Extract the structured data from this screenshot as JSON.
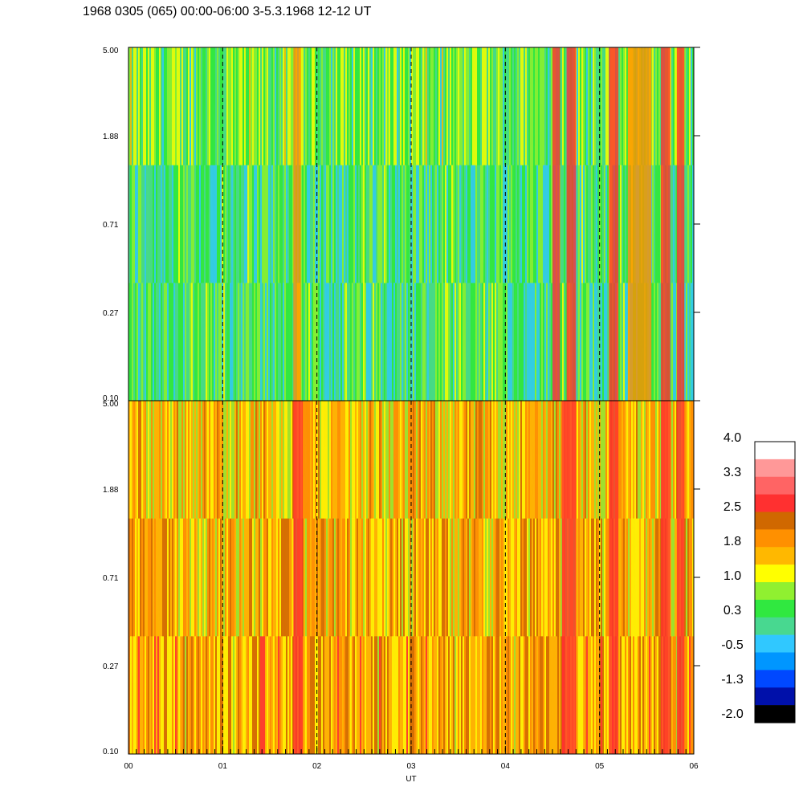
{
  "title": "1968 0305 (065) 00:00-06:00 3-5.3.1968  12-12 UT",
  "chart_data": {
    "type": "heatmap",
    "xlabel": "UT",
    "x_ticks": [
      "00",
      "01",
      "02",
      "03",
      "04",
      "05",
      "06"
    ],
    "x_range": [
      0,
      6
    ],
    "panels": [
      {
        "name": "",
        "y_ticks": [
          "5.00",
          "1.88",
          "0.71",
          "0.27",
          "0.10"
        ],
        "y_range": [
          0.1,
          5.0
        ],
        "y_scale": "log",
        "dominant_level": 0.3,
        "features": [
          {
            "x_start": 1.75,
            "x_end": 1.83,
            "level": 1.8
          },
          {
            "x_start": 4.5,
            "x_end": 4.58,
            "level": 2.5
          },
          {
            "x_start": 4.65,
            "x_end": 4.75,
            "level": 2.5
          },
          {
            "x_start": 5.1,
            "x_end": 5.2,
            "level": 2.5
          },
          {
            "x_start": 5.3,
            "x_end": 5.55,
            "level": 1.8
          },
          {
            "x_start": 5.65,
            "x_end": 5.75,
            "level": 2.5
          },
          {
            "x_start": 5.82,
            "x_end": 5.9,
            "level": 2.5
          }
        ]
      },
      {
        "name": "",
        "y_ticks": [
          "5.00",
          "1.88",
          "0.71",
          "0.27",
          "0.10"
        ],
        "y_range": [
          0.1,
          5.0
        ],
        "y_scale": "log",
        "dominant_level": 1.8,
        "features": [
          {
            "x_start": 1.75,
            "x_end": 1.85,
            "level": 2.5
          },
          {
            "x_start": 4.6,
            "x_end": 4.75,
            "level": 2.5
          },
          {
            "x_start": 5.1,
            "x_end": 5.2,
            "level": 2.5
          },
          {
            "x_start": 5.65,
            "x_end": 5.75,
            "level": 2.5
          },
          {
            "x_start": 5.82,
            "x_end": 5.9,
            "level": 2.5
          }
        ]
      }
    ],
    "grid": "dashed vertical at each hour",
    "colorbar": {
      "tick_labels": [
        "4.0",
        "3.3",
        "2.5",
        "1.8",
        "1.0",
        "0.3",
        "-0.5",
        "-1.3",
        "-2.0"
      ],
      "range": [
        -2.0,
        4.0
      ],
      "colors": [
        "#000000",
        "#0010aa",
        "#0048ff",
        "#0096ff",
        "#30c8ff",
        "#48d890",
        "#30e840",
        "#90f030",
        "#ffff00",
        "#ffb800",
        "#ff9000",
        "#d06800",
        "#ff3030",
        "#ff6464",
        "#ff9898",
        "#ffffff"
      ],
      "placement": "right"
    }
  }
}
